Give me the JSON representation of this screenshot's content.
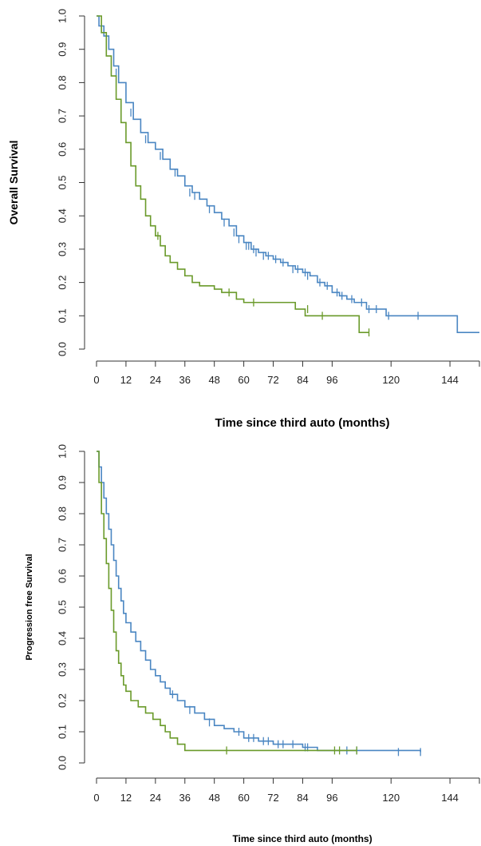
{
  "chart_data": [
    {
      "type": "line",
      "panel": "top",
      "title": "",
      "xlabel": "Time since third auto (months)",
      "ylabel": "Overall Survival",
      "xlim": [
        0,
        156
      ],
      "ylim": [
        0,
        1
      ],
      "xticks": [
        0,
        12,
        24,
        36,
        48,
        60,
        72,
        84,
        96,
        120,
        144
      ],
      "yticks": [
        0.0,
        0.1,
        0.2,
        0.3,
        0.4,
        0.5,
        0.6,
        0.7,
        0.8,
        0.9,
        1.0
      ],
      "grid": false,
      "legend": "none",
      "series": [
        {
          "color": "#4a86c2",
          "step": [
            [
              0,
              1.0
            ],
            [
              1,
              0.97
            ],
            [
              3,
              0.94
            ],
            [
              5,
              0.9
            ],
            [
              7,
              0.85
            ],
            [
              9,
              0.8
            ],
            [
              12,
              0.74
            ],
            [
              15,
              0.69
            ],
            [
              18,
              0.65
            ],
            [
              21,
              0.62
            ],
            [
              24,
              0.6
            ],
            [
              27,
              0.57
            ],
            [
              30,
              0.54
            ],
            [
              33,
              0.52
            ],
            [
              36,
              0.49
            ],
            [
              39,
              0.47
            ],
            [
              42,
              0.45
            ],
            [
              45,
              0.43
            ],
            [
              48,
              0.41
            ],
            [
              51,
              0.39
            ],
            [
              54,
              0.37
            ],
            [
              57,
              0.34
            ],
            [
              60,
              0.32
            ],
            [
              63,
              0.3
            ],
            [
              66,
              0.29
            ],
            [
              69,
              0.28
            ],
            [
              72,
              0.27
            ],
            [
              75,
              0.26
            ],
            [
              78,
              0.25
            ],
            [
              81,
              0.24
            ],
            [
              84,
              0.23
            ],
            [
              87,
              0.22
            ],
            [
              90,
              0.2
            ],
            [
              93,
              0.19
            ],
            [
              96,
              0.17
            ],
            [
              99,
              0.16
            ],
            [
              102,
              0.15
            ],
            [
              105,
              0.14
            ],
            [
              110,
              0.12
            ],
            [
              118,
              0.1
            ],
            [
              147,
              0.05
            ],
            [
              156,
              0.05
            ]
          ],
          "censors": [
            [
              2,
              0.96
            ],
            [
              4,
              0.93
            ],
            [
              8,
              0.83
            ],
            [
              14,
              0.71
            ],
            [
              20,
              0.63
            ],
            [
              26,
              0.58
            ],
            [
              32,
              0.53
            ],
            [
              38,
              0.47
            ],
            [
              40,
              0.46
            ],
            [
              46,
              0.42
            ],
            [
              52,
              0.38
            ],
            [
              56,
              0.35
            ],
            [
              58,
              0.33
            ],
            [
              61,
              0.31
            ],
            [
              62,
              0.31
            ],
            [
              64,
              0.3
            ],
            [
              65,
              0.29
            ],
            [
              68,
              0.28
            ],
            [
              70,
              0.28
            ],
            [
              73,
              0.27
            ],
            [
              76,
              0.26
            ],
            [
              80,
              0.24
            ],
            [
              82,
              0.24
            ],
            [
              85,
              0.23
            ],
            [
              86,
              0.22
            ],
            [
              91,
              0.2
            ],
            [
              94,
              0.19
            ],
            [
              98,
              0.17
            ],
            [
              100,
              0.16
            ],
            [
              104,
              0.15
            ],
            [
              108,
              0.14
            ],
            [
              111,
              0.12
            ],
            [
              114,
              0.12
            ],
            [
              119,
              0.1
            ],
            [
              131,
              0.1
            ]
          ]
        },
        {
          "color": "#6a9a2a",
          "step": [
            [
              0,
              1.0
            ],
            [
              2,
              0.95
            ],
            [
              4,
              0.88
            ],
            [
              6,
              0.82
            ],
            [
              8,
              0.75
            ],
            [
              10,
              0.68
            ],
            [
              12,
              0.62
            ],
            [
              14,
              0.55
            ],
            [
              16,
              0.49
            ],
            [
              18,
              0.45
            ],
            [
              20,
              0.4
            ],
            [
              22,
              0.37
            ],
            [
              24,
              0.34
            ],
            [
              26,
              0.31
            ],
            [
              28,
              0.28
            ],
            [
              30,
              0.26
            ],
            [
              33,
              0.24
            ],
            [
              36,
              0.22
            ],
            [
              39,
              0.2
            ],
            [
              42,
              0.19
            ],
            [
              48,
              0.18
            ],
            [
              51,
              0.17
            ],
            [
              57,
              0.15
            ],
            [
              60,
              0.14
            ],
            [
              72,
              0.14
            ],
            [
              81,
              0.12
            ],
            [
              85,
              0.1
            ],
            [
              96,
              0.1
            ],
            [
              107,
              0.05
            ],
            [
              111,
              0.05
            ]
          ],
          "censors": [
            [
              25,
              0.34
            ],
            [
              54,
              0.17
            ],
            [
              64,
              0.14
            ],
            [
              86,
              0.12
            ],
            [
              92,
              0.1
            ],
            [
              111,
              0.05
            ]
          ]
        }
      ]
    },
    {
      "type": "line",
      "panel": "bottom",
      "title": "",
      "xlabel": "Time since third auto (months)",
      "ylabel": "Progression free Survival",
      "xlim": [
        0,
        156
      ],
      "ylim": [
        0,
        1
      ],
      "xticks": [
        0,
        12,
        24,
        36,
        48,
        60,
        72,
        84,
        96,
        120,
        144
      ],
      "yticks": [
        0.0,
        0.1,
        0.2,
        0.3,
        0.4,
        0.5,
        0.6,
        0.7,
        0.8,
        0.9,
        1.0
      ],
      "grid": false,
      "legend": "none",
      "series": [
        {
          "color": "#4a86c2",
          "step": [
            [
              0,
              1.0
            ],
            [
              1,
              0.95
            ],
            [
              2,
              0.9
            ],
            [
              3,
              0.85
            ],
            [
              4,
              0.8
            ],
            [
              5,
              0.75
            ],
            [
              6,
              0.7
            ],
            [
              7,
              0.65
            ],
            [
              8,
              0.6
            ],
            [
              9,
              0.56
            ],
            [
              10,
              0.52
            ],
            [
              11,
              0.48
            ],
            [
              12,
              0.45
            ],
            [
              14,
              0.42
            ],
            [
              16,
              0.39
            ],
            [
              18,
              0.36
            ],
            [
              20,
              0.33
            ],
            [
              22,
              0.3
            ],
            [
              24,
              0.28
            ],
            [
              26,
              0.26
            ],
            [
              28,
              0.24
            ],
            [
              30,
              0.22
            ],
            [
              33,
              0.2
            ],
            [
              36,
              0.18
            ],
            [
              40,
              0.16
            ],
            [
              44,
              0.14
            ],
            [
              48,
              0.12
            ],
            [
              52,
              0.11
            ],
            [
              56,
              0.1
            ],
            [
              60,
              0.08
            ],
            [
              66,
              0.07
            ],
            [
              72,
              0.06
            ],
            [
              78,
              0.06
            ],
            [
              84,
              0.05
            ],
            [
              90,
              0.04
            ],
            [
              96,
              0.04
            ],
            [
              132,
              0.035
            ]
          ],
          "censors": [
            [
              31,
              0.22
            ],
            [
              38,
              0.17
            ],
            [
              46,
              0.13
            ],
            [
              58,
              0.1
            ],
            [
              62,
              0.08
            ],
            [
              64,
              0.08
            ],
            [
              68,
              0.07
            ],
            [
              70,
              0.07
            ],
            [
              74,
              0.06
            ],
            [
              76,
              0.06
            ],
            [
              80,
              0.06
            ],
            [
              85,
              0.05
            ],
            [
              86,
              0.05
            ],
            [
              102,
              0.04
            ],
            [
              106,
              0.04
            ],
            [
              123,
              0.035
            ],
            [
              132,
              0.035
            ]
          ]
        },
        {
          "color": "#6a9a2a",
          "step": [
            [
              0,
              1.0
            ],
            [
              1,
              0.9
            ],
            [
              2,
              0.8
            ],
            [
              3,
              0.72
            ],
            [
              4,
              0.64
            ],
            [
              5,
              0.56
            ],
            [
              6,
              0.49
            ],
            [
              7,
              0.42
            ],
            [
              8,
              0.36
            ],
            [
              9,
              0.32
            ],
            [
              10,
              0.28
            ],
            [
              11,
              0.25
            ],
            [
              12,
              0.23
            ],
            [
              14,
              0.2
            ],
            [
              17,
              0.18
            ],
            [
              20,
              0.16
            ],
            [
              23,
              0.14
            ],
            [
              26,
              0.12
            ],
            [
              28,
              0.1
            ],
            [
              30,
              0.08
            ],
            [
              33,
              0.06
            ],
            [
              36,
              0.04
            ],
            [
              106,
              0.04
            ]
          ],
          "censors": [
            [
              53,
              0.04
            ],
            [
              97,
              0.04
            ],
            [
              99,
              0.04
            ],
            [
              106,
              0.04
            ]
          ]
        }
      ]
    }
  ]
}
